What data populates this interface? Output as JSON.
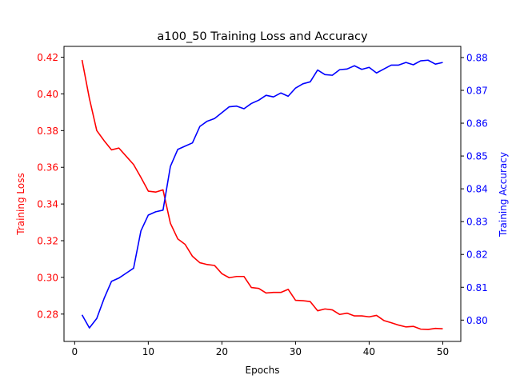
{
  "chart_data": {
    "type": "line",
    "title": "a100_50 Training Loss and Accuracy",
    "xlabel": "Epochs",
    "ylabel_left": "Training Loss",
    "ylabel_right": "Training Accuracy",
    "xlim": [
      -1.45,
      52.45
    ],
    "ylim_left": [
      0.2651,
      0.4259
    ],
    "ylim_right": [
      0.7935,
      0.8834
    ],
    "x_ticks": [
      0,
      10,
      20,
      30,
      40,
      50
    ],
    "y_ticks_left": [
      0.28,
      0.3,
      0.32,
      0.34,
      0.36,
      0.38,
      0.4,
      0.42
    ],
    "y_ticks_right": [
      0.8,
      0.81,
      0.82,
      0.83,
      0.84,
      0.85,
      0.86,
      0.87,
      0.88
    ],
    "grid": false,
    "colors": {
      "loss": "#ff0000",
      "accuracy": "#0000ff",
      "axis": "#000000"
    },
    "x": [
      1,
      2,
      3,
      4,
      5,
      6,
      7,
      8,
      9,
      10,
      11,
      12,
      13,
      14,
      15,
      16,
      17,
      18,
      19,
      20,
      21,
      22,
      23,
      24,
      25,
      26,
      27,
      28,
      29,
      30,
      31,
      32,
      33,
      34,
      35,
      36,
      37,
      38,
      39,
      40,
      41,
      42,
      43,
      44,
      45,
      46,
      47,
      48,
      49,
      50
    ],
    "series": [
      {
        "axis": "left",
        "color": "#ff0000",
        "values": [
          0.4185,
          0.3975,
          0.38,
          0.3745,
          0.3695,
          0.3705,
          0.366,
          0.3615,
          0.3545,
          0.347,
          0.3465,
          0.3477,
          0.3295,
          0.321,
          0.318,
          0.3115,
          0.308,
          0.307,
          0.3065,
          0.302,
          0.2998,
          0.3005,
          0.3005,
          0.2945,
          0.294,
          0.2915,
          0.2918,
          0.2918,
          0.2935,
          0.2875,
          0.2873,
          0.2868,
          0.2818,
          0.2828,
          0.2823,
          0.2798,
          0.2805,
          0.279,
          0.279,
          0.2785,
          0.2793,
          0.2765,
          0.2753,
          0.274,
          0.273,
          0.2733,
          0.2718,
          0.2716,
          0.2722,
          0.272
        ]
      },
      {
        "axis": "right",
        "color": "#0000ff",
        "values": [
          0.8016,
          0.7976,
          0.8005,
          0.8066,
          0.8118,
          0.8128,
          0.8143,
          0.8158,
          0.8272,
          0.832,
          0.833,
          0.8335,
          0.8468,
          0.852,
          0.853,
          0.854,
          0.859,
          0.8606,
          0.8614,
          0.8632,
          0.865,
          0.8652,
          0.8644,
          0.866,
          0.867,
          0.8685,
          0.868,
          0.8692,
          0.8682,
          0.8707,
          0.872,
          0.8726,
          0.8762,
          0.8748,
          0.8746,
          0.8763,
          0.8765,
          0.8775,
          0.8764,
          0.877,
          0.8753,
          0.8765,
          0.8777,
          0.8777,
          0.8785,
          0.8778,
          0.879,
          0.8792,
          0.878,
          0.8785
        ]
      }
    ]
  }
}
